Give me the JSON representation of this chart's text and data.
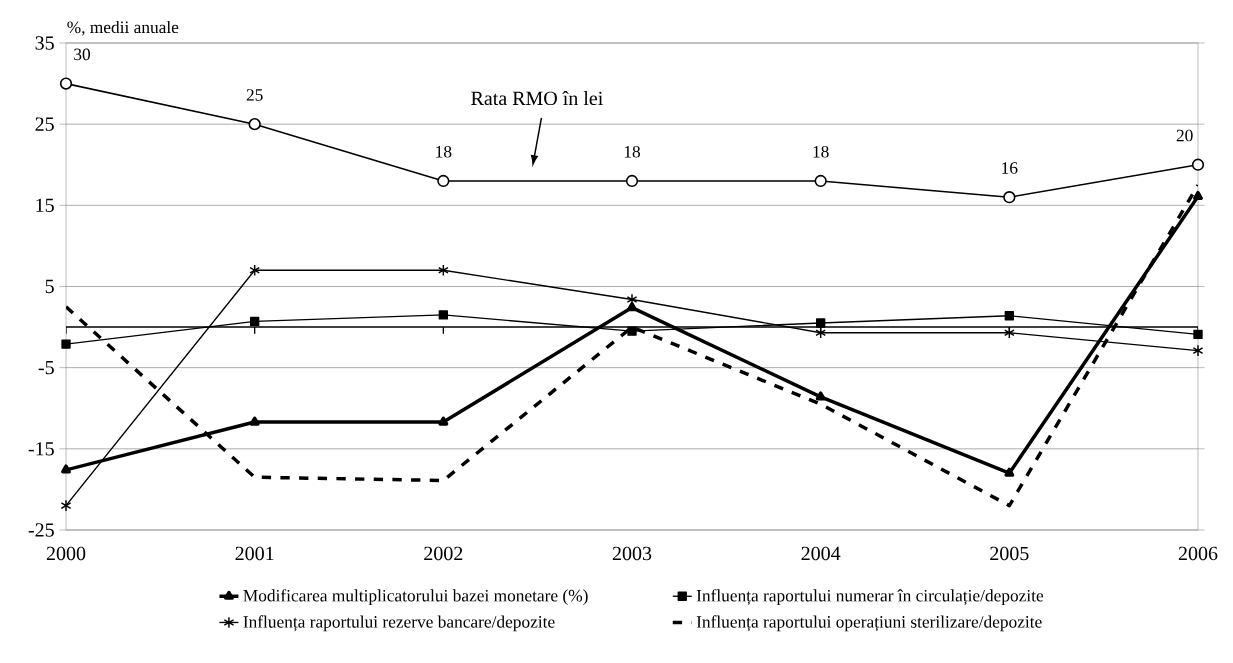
{
  "chart_data": {
    "type": "line",
    "ylabel": "%, medii anuale",
    "x": [
      2000,
      2001,
      2002,
      2003,
      2004,
      2005,
      2006
    ],
    "xlim": [
      2000,
      2006
    ],
    "xticks": [
      2000,
      2001,
      2002,
      2003,
      2004,
      2005,
      2006
    ],
    "ylim": [
      -25,
      35
    ],
    "yticks": [
      -25,
      -15,
      -5,
      5,
      15,
      25,
      35
    ],
    "grid": "y",
    "legend": "bottom",
    "ref_lines": [
      {
        "axis": "y",
        "value": 0,
        "color": "#000000"
      }
    ],
    "annotations": [
      "Rata RMO în lei"
    ],
    "series": [
      {
        "color": "#000000",
        "marker": "circle",
        "line_style": "solid",
        "values": [
          30,
          25,
          18,
          18,
          18,
          16,
          20
        ],
        "value_labels": [
          "30",
          "25",
          "18",
          "18",
          "18",
          "16",
          "20"
        ]
      },
      {
        "name": "Modificarea multiplicatorului bazei monetare (%)",
        "color": "#000000",
        "marker": "triangle",
        "line_style": "solid",
        "values": [
          -17.6,
          -11.7,
          -11.7,
          2.4,
          -8.6,
          -18.0,
          16.1
        ]
      },
      {
        "name": "Influența raportului numerar în circulație/depozite",
        "color": "#000000",
        "marker": "square",
        "line_style": "solid",
        "values": [
          -2.1,
          0.7,
          1.5,
          -0.5,
          0.5,
          1.4,
          -0.9
        ]
      },
      {
        "name": "Influența raportului rezerve bancare/depozite",
        "color": "#000000",
        "marker": "cross",
        "line_style": "solid",
        "values": [
          -22.0,
          7.0,
          7.0,
          3.4,
          -0.7,
          -0.7,
          -2.9
        ]
      },
      {
        "name": "Influența raportului operațiuni sterilizare/depozite",
        "color": "#000000",
        "marker": "none",
        "line_style": "dashed",
        "values": [
          2.5,
          -18.5,
          -18.9,
          0.0,
          -9.5,
          -22.0,
          17.5
        ]
      }
    ]
  }
}
